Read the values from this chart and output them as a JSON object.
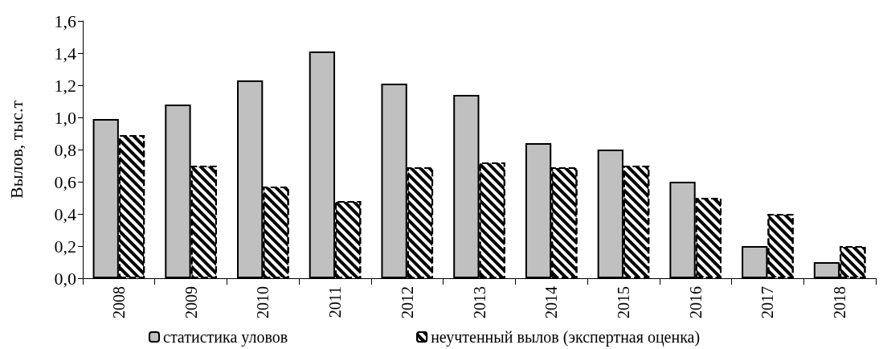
{
  "chart_data": {
    "type": "bar",
    "ylabel": "Вылов, тыс.т",
    "categories": [
      "2008",
      "2009",
      "2010",
      "2011",
      "2012",
      "2013",
      "2014",
      "2015",
      "2016",
      "2017",
      "2018"
    ],
    "series": [
      {
        "name": "статистика уловов",
        "color": "#c0c0c0",
        "values": [
          0.99,
          1.08,
          1.23,
          1.41,
          1.21,
          1.14,
          0.84,
          0.8,
          0.6,
          0.2,
          0.1
        ]
      },
      {
        "name": "неучтенный вылов (экспертная оценка)",
        "color": "#000000",
        "line_style": "dashed",
        "values": [
          0.89,
          0.7,
          0.57,
          0.48,
          0.69,
          0.72,
          0.69,
          0.7,
          0.5,
          0.4,
          0.2
        ]
      }
    ],
    "ylim": [
      0,
      1.6
    ],
    "yticks": [
      {
        "value": 0,
        "label": "0,0"
      },
      {
        "value": 0.2,
        "label": "0,2"
      },
      {
        "value": 0.4,
        "label": "0,4"
      },
      {
        "value": 0.6,
        "label": "0,6"
      },
      {
        "value": 0.8,
        "label": "0,8"
      },
      {
        "value": 1.0,
        "label": "1,0"
      },
      {
        "value": 1.2,
        "label": "1,2"
      },
      {
        "value": 1.4,
        "label": "1,4"
      },
      {
        "value": 1.6,
        "label": "1,6"
      }
    ],
    "grid": false,
    "legend": "bottom"
  }
}
